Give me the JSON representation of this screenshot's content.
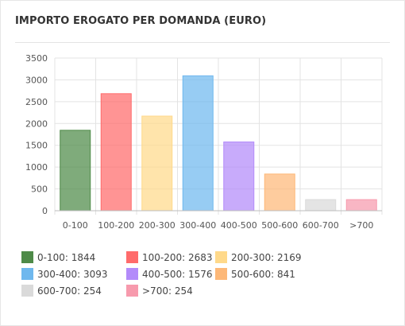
{
  "title": "IMPORTO EROGATO PER DOMANDA (EURO)",
  "chart_data": {
    "type": "bar",
    "categories": [
      "0-100",
      "100-200",
      "200-300",
      "300-400",
      "400-500",
      "500-600",
      "600-700",
      ">700"
    ],
    "values": [
      1844,
      2683,
      2169,
      3093,
      1576,
      841,
      254,
      254
    ],
    "colors": [
      "#4e8a48",
      "#ff6b6b",
      "#ffd98a",
      "#6fb8ee",
      "#b38bfa",
      "#fdb878",
      "#dadada",
      "#f79aad"
    ],
    "ylim": [
      0,
      3500
    ],
    "yticks": [
      "0",
      "500",
      "1000",
      "1500",
      "2000",
      "2500",
      "3000",
      "3500"
    ],
    "grid": true,
    "legend_position": "bottom",
    "legend": [
      "0-100: 1844",
      "100-200: 2683",
      "200-300: 2169",
      "300-400: 3093",
      "400-500: 1576",
      "500-600: 841",
      "600-700: 254",
      ">700: 254"
    ]
  }
}
